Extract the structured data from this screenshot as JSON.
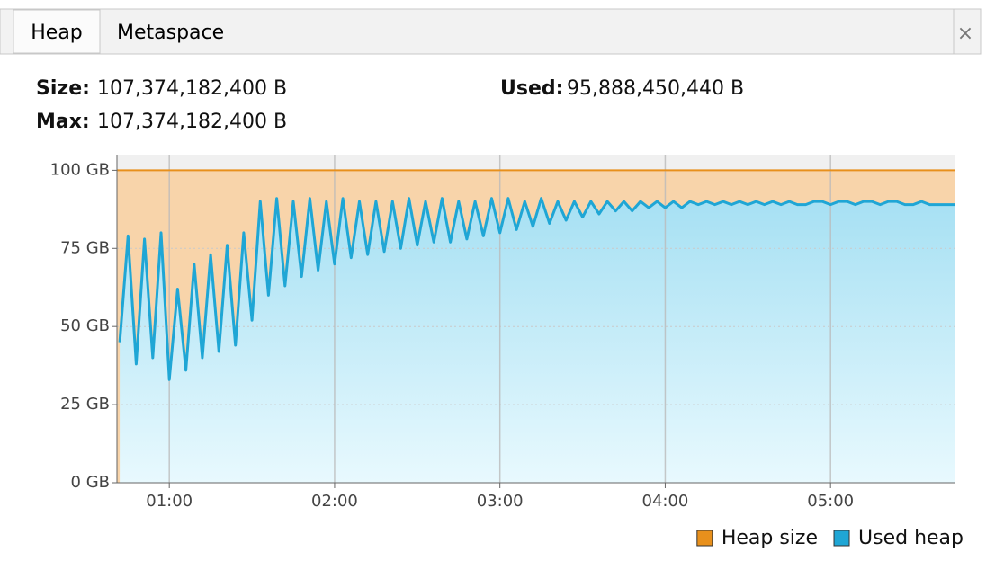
{
  "tabs": [
    "Heap",
    "Metaspace"
  ],
  "stats": [
    {
      "label": "Size:",
      "value": "107,374,182,400 B"
    },
    {
      "label": "Used:",
      "value": "95,888,450,440 B"
    },
    {
      "label": "Max:",
      "value": "107,374,182,400 B"
    }
  ],
  "chart_data": {
    "type": "area",
    "xlim": [
      41,
      345
    ],
    "ylim": [
      0,
      105
    ],
    "xticks": [
      {
        "value": 60,
        "label": "01:00"
      },
      {
        "value": 120,
        "label": "02:00"
      },
      {
        "value": 180,
        "label": "03:00"
      },
      {
        "value": 240,
        "label": "04:00"
      },
      {
        "value": 300,
        "label": "05:00"
      }
    ],
    "yticks": [
      {
        "value": 0,
        "label": "0 GB"
      },
      {
        "value": 25,
        "label": "25 GB"
      },
      {
        "value": 50,
        "label": "50 GB"
      },
      {
        "value": 75,
        "label": "75 GB"
      },
      {
        "value": 100,
        "label": "100 GB"
      }
    ],
    "grid": true,
    "legend": "bottom-right",
    "series": [
      {
        "name": "Heap size",
        "color": "#e8901c",
        "fill": "#f8d4aa",
        "x": [
          41,
          345
        ],
        "values": [
          100,
          100
        ]
      },
      {
        "name": "Used heap",
        "color": "#1fa6d5",
        "fill": "#aee3f5",
        "x": [
          42,
          45,
          48,
          51,
          54,
          57,
          60,
          63,
          66,
          69,
          72,
          75,
          78,
          81,
          84,
          87,
          90,
          93,
          96,
          99,
          102,
          105,
          108,
          111,
          114,
          117,
          120,
          123,
          126,
          129,
          132,
          135,
          138,
          141,
          144,
          147,
          150,
          153,
          156,
          159,
          162,
          165,
          168,
          171,
          174,
          177,
          180,
          183,
          186,
          189,
          192,
          195,
          198,
          201,
          204,
          207,
          210,
          213,
          216,
          219,
          222,
          225,
          228,
          231,
          234,
          237,
          240,
          243,
          246,
          249,
          252,
          255,
          258,
          261,
          264,
          267,
          270,
          273,
          276,
          279,
          282,
          285,
          288,
          291,
          294,
          297,
          300,
          303,
          306,
          309,
          312,
          315,
          318,
          321,
          324,
          327,
          330,
          333,
          336,
          339,
          342,
          345
        ],
        "values": [
          45,
          79,
          38,
          78,
          40,
          80,
          33,
          62,
          36,
          70,
          40,
          73,
          42,
          76,
          44,
          80,
          52,
          90,
          60,
          91,
          63,
          90,
          66,
          91,
          68,
          90,
          70,
          91,
          72,
          90,
          73,
          90,
          74,
          90,
          75,
          91,
          76,
          90,
          77,
          91,
          77,
          90,
          78,
          90,
          79,
          91,
          80,
          91,
          81,
          90,
          82,
          91,
          83,
          90,
          84,
          90,
          85,
          90,
          86,
          90,
          87,
          90,
          87,
          90,
          88,
          90,
          88,
          90,
          88,
          90,
          89,
          90,
          89,
          90,
          89,
          90,
          89,
          90,
          89,
          90,
          89,
          90,
          89,
          89,
          90,
          90,
          89,
          90,
          90,
          89,
          90,
          90,
          89,
          90,
          90,
          89,
          89,
          90,
          89,
          89,
          89,
          89
        ]
      }
    ]
  }
}
